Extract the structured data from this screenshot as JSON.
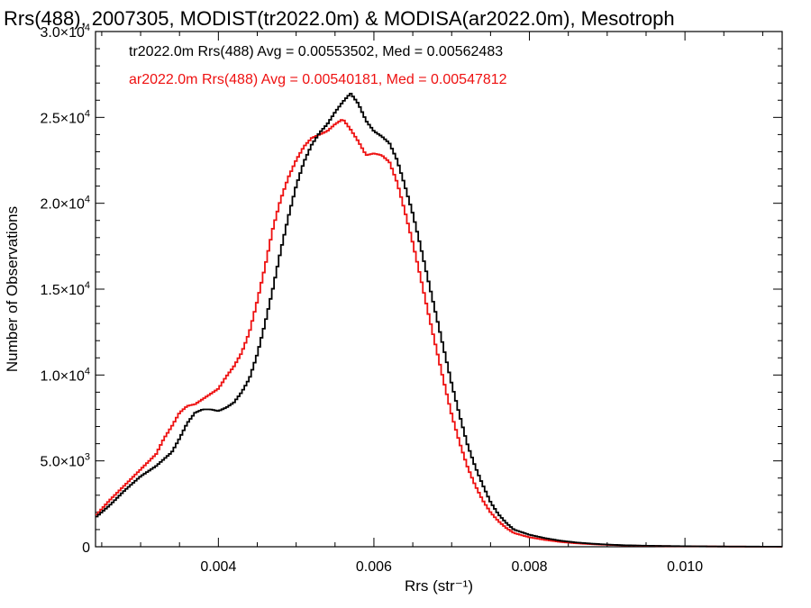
{
  "chart_data": {
    "type": "line",
    "title": "Rrs(488), 2007305, MODIST(tr2022.0m) & MODISA(ar2022.0m), Mesotroph",
    "xlabel": "Rrs (str⁻¹)",
    "ylabel": "Number of Observations",
    "xlim": [
      0.00242,
      0.01125
    ],
    "ylim": [
      0,
      30000
    ],
    "x_ticks": [
      {
        "value": 0.004,
        "label": "0.004"
      },
      {
        "value": 0.006,
        "label": "0.006"
      },
      {
        "value": 0.008,
        "label": "0.008"
      },
      {
        "value": 0.01,
        "label": "0.010"
      }
    ],
    "y_ticks": [
      {
        "value": 0,
        "mantissa": "0",
        "exponent": ""
      },
      {
        "value": 5000,
        "mantissa": "5.0×10",
        "exponent": "3"
      },
      {
        "value": 10000,
        "mantissa": "1.0×10",
        "exponent": "4"
      },
      {
        "value": 15000,
        "mantissa": "1.5×10",
        "exponent": "4"
      },
      {
        "value": 20000,
        "mantissa": "2.0×10",
        "exponent": "4"
      },
      {
        "value": 25000,
        "mantissa": "2.5×10",
        "exponent": "4"
      },
      {
        "value": 30000,
        "mantissa": "3.0×10",
        "exponent": "4"
      }
    ],
    "legend": {
      "placement": "top-left",
      "entries": [
        {
          "text": "tr2022.0m Rrs(488) Avg = 0.00553502, Med = 0.00562483",
          "color": "#000000"
        },
        {
          "text": "ar2022.0m Rrs(488) Avg = 0.00540181, Med = 0.00547812",
          "color": "#ee1111"
        }
      ]
    },
    "series": [
      {
        "color": "#000000",
        "style": "step",
        "points": [
          [
            0.00242,
            1700
          ],
          [
            0.0026,
            2400
          ],
          [
            0.0028,
            3300
          ],
          [
            0.003,
            4100
          ],
          [
            0.0032,
            4700
          ],
          [
            0.0034,
            5500
          ],
          [
            0.0035,
            6300
          ],
          [
            0.0036,
            7200
          ],
          [
            0.0037,
            7800
          ],
          [
            0.0038,
            8000
          ],
          [
            0.0039,
            8000
          ],
          [
            0.004,
            7900
          ],
          [
            0.0041,
            8100
          ],
          [
            0.0042,
            8400
          ],
          [
            0.0043,
            9000
          ],
          [
            0.0044,
            9800
          ],
          [
            0.0045,
            11200
          ],
          [
            0.0046,
            13000
          ],
          [
            0.0047,
            15000
          ],
          [
            0.0048,
            17200
          ],
          [
            0.0049,
            19200
          ],
          [
            0.005,
            21000
          ],
          [
            0.0051,
            22400
          ],
          [
            0.0052,
            23400
          ],
          [
            0.0053,
            24100
          ],
          [
            0.0054,
            24600
          ],
          [
            0.0055,
            25300
          ],
          [
            0.0056,
            25900
          ],
          [
            0.0057,
            26400
          ],
          [
            0.0058,
            25800
          ],
          [
            0.0059,
            24800
          ],
          [
            0.006,
            24200
          ],
          [
            0.0061,
            23900
          ],
          [
            0.0062,
            23500
          ],
          [
            0.0063,
            22500
          ],
          [
            0.0064,
            21000
          ],
          [
            0.0065,
            19400
          ],
          [
            0.0066,
            17500
          ],
          [
            0.0067,
            15500
          ],
          [
            0.0068,
            13500
          ],
          [
            0.0069,
            11500
          ],
          [
            0.007,
            9500
          ],
          [
            0.0071,
            7700
          ],
          [
            0.0072,
            6000
          ],
          [
            0.0073,
            4700
          ],
          [
            0.0074,
            3600
          ],
          [
            0.0075,
            2600
          ],
          [
            0.0076,
            1900
          ],
          [
            0.0077,
            1400
          ],
          [
            0.0078,
            1000
          ],
          [
            0.008,
            700
          ],
          [
            0.0082,
            500
          ],
          [
            0.0084,
            350
          ],
          [
            0.0086,
            250
          ],
          [
            0.0088,
            180
          ],
          [
            0.009,
            130
          ],
          [
            0.0092,
            90
          ],
          [
            0.0095,
            60
          ],
          [
            0.01,
            30
          ],
          [
            0.0105,
            15
          ],
          [
            0.011,
            8
          ],
          [
            0.01125,
            5
          ]
        ]
      },
      {
        "color": "#ee1111",
        "style": "step",
        "points": [
          [
            0.00242,
            1800
          ],
          [
            0.0026,
            2700
          ],
          [
            0.0028,
            3600
          ],
          [
            0.003,
            4500
          ],
          [
            0.0032,
            5400
          ],
          [
            0.0033,
            6300
          ],
          [
            0.0034,
            7000
          ],
          [
            0.0035,
            7800
          ],
          [
            0.0036,
            8200
          ],
          [
            0.0037,
            8300
          ],
          [
            0.0038,
            8600
          ],
          [
            0.0039,
            8900
          ],
          [
            0.004,
            9200
          ],
          [
            0.0041,
            9900
          ],
          [
            0.0042,
            10500
          ],
          [
            0.0043,
            11300
          ],
          [
            0.0044,
            12500
          ],
          [
            0.0045,
            14300
          ],
          [
            0.0046,
            16300
          ],
          [
            0.0047,
            18500
          ],
          [
            0.0048,
            20200
          ],
          [
            0.0049,
            21500
          ],
          [
            0.005,
            22500
          ],
          [
            0.0051,
            23300
          ],
          [
            0.0052,
            23800
          ],
          [
            0.0053,
            24000
          ],
          [
            0.0054,
            24200
          ],
          [
            0.0055,
            24600
          ],
          [
            0.0056,
            24900
          ],
          [
            0.0057,
            24300
          ],
          [
            0.0058,
            23600
          ],
          [
            0.0059,
            22800
          ],
          [
            0.006,
            22900
          ],
          [
            0.0061,
            22800
          ],
          [
            0.0062,
            22400
          ],
          [
            0.0063,
            21200
          ],
          [
            0.0064,
            19500
          ],
          [
            0.0065,
            17700
          ],
          [
            0.0066,
            15700
          ],
          [
            0.0067,
            13600
          ],
          [
            0.0068,
            11600
          ],
          [
            0.0069,
            9600
          ],
          [
            0.007,
            7700
          ],
          [
            0.0071,
            6100
          ],
          [
            0.0072,
            4700
          ],
          [
            0.0073,
            3600
          ],
          [
            0.0074,
            2700
          ],
          [
            0.0075,
            2000
          ],
          [
            0.0076,
            1500
          ],
          [
            0.0077,
            1100
          ],
          [
            0.0078,
            800
          ],
          [
            0.008,
            550
          ],
          [
            0.0082,
            400
          ],
          [
            0.0084,
            280
          ],
          [
            0.0086,
            200
          ],
          [
            0.0088,
            150
          ],
          [
            0.009,
            110
          ],
          [
            0.0092,
            80
          ],
          [
            0.0095,
            50
          ],
          [
            0.01,
            25
          ],
          [
            0.0105,
            12
          ],
          [
            0.011,
            6
          ],
          [
            0.01125,
            4
          ]
        ]
      }
    ]
  }
}
